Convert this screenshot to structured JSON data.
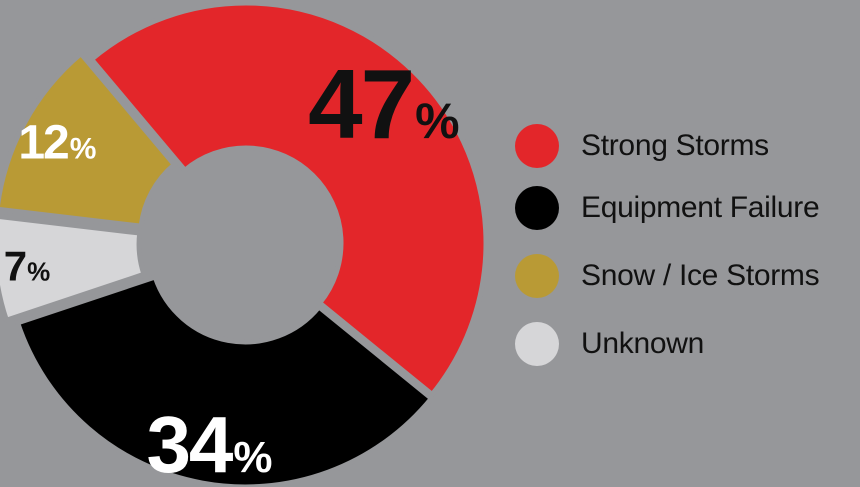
{
  "chart_data": {
    "type": "pie",
    "donut": true,
    "title": "",
    "legend_position": "right",
    "slices": [
      {
        "name": "Strong Storms",
        "value": 47,
        "label": "47",
        "color": "#e3262a",
        "label_color": "#111111"
      },
      {
        "name": "Equipment Failure",
        "value": 34,
        "label": "34",
        "color": "#000000",
        "label_color": "#ffffff"
      },
      {
        "name": "Unknown",
        "value": 7,
        "label": "7",
        "color": "#d6d6d8",
        "label_color": "#111111"
      },
      {
        "name": "Snow / Ice Storms",
        "value": 12,
        "label": "12",
        "color": "#b99a35",
        "label_color": "#ffffff"
      }
    ],
    "percent_symbol": "%",
    "background_color": "#96979a"
  },
  "legend": {
    "items": [
      {
        "label": "Strong Storms",
        "color": "#e3262a"
      },
      {
        "label": "Equipment Failure",
        "color": "#000000"
      },
      {
        "label": "Snow / Ice Storms",
        "color": "#b99a35"
      },
      {
        "label": "Unknown",
        "color": "#d6d6d8"
      }
    ]
  }
}
